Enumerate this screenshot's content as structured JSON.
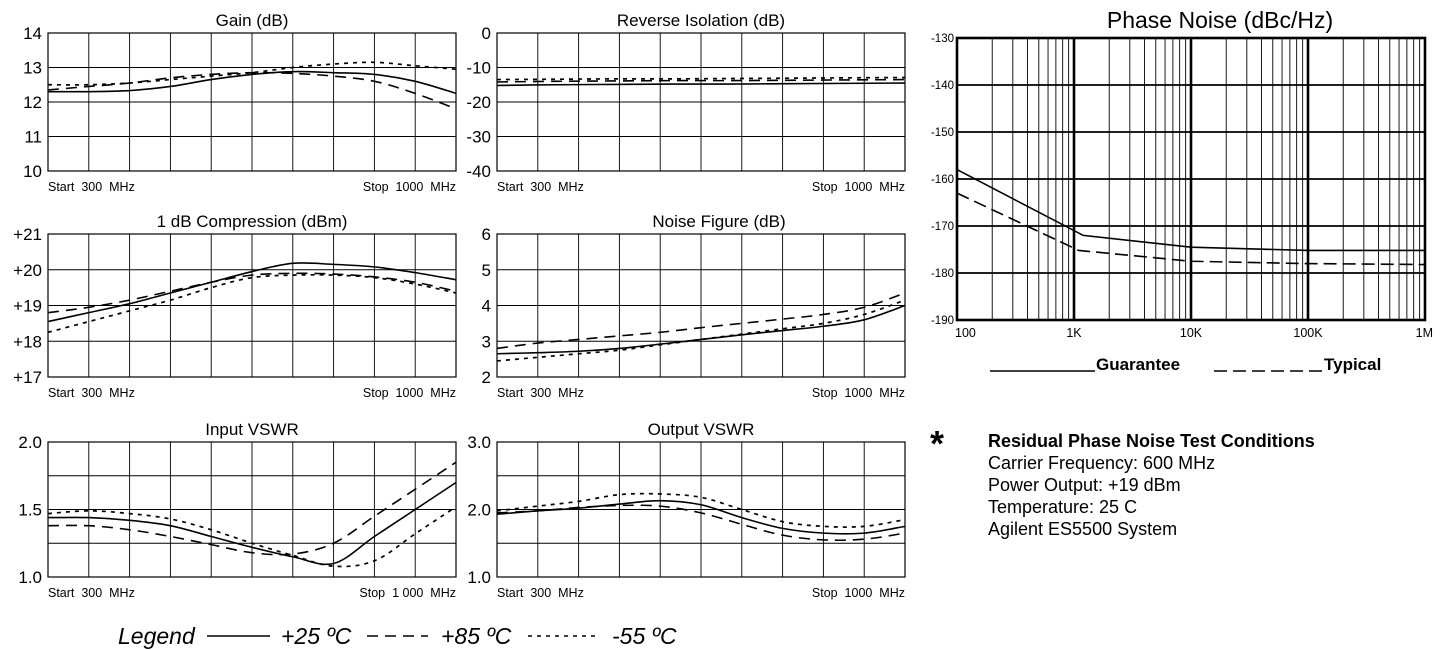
{
  "legend": {
    "title": "Legend",
    "entries": [
      {
        "label": "+25 ºC",
        "dash": "solid"
      },
      {
        "label": "+85 ºC",
        "dash": "long-dash"
      },
      {
        "label": "-55 ºC",
        "dash": "short-dash"
      }
    ]
  },
  "phase_noise_legend": {
    "guarantee": "Guarantee",
    "typical": "Typical"
  },
  "test_conditions": {
    "star": "*",
    "heading": "Residual Phase Noise Test Conditions",
    "lines": [
      "Carrier Frequency: 600 MHz",
      "Power Output: +19 dBm",
      "Temperature: 25 C",
      "Agilent ES5500 System"
    ]
  },
  "chart_data": [
    {
      "id": "gain",
      "type": "line",
      "title": "Gain (dB)",
      "x_start_label": "Start  300  MHz",
      "x_stop_label": "Stop  1000  MHz",
      "xlim": [
        300,
        1000
      ],
      "ylim": [
        10,
        14
      ],
      "yticks": [
        10,
        11,
        12,
        13,
        14
      ],
      "ytick_labels": [
        "10",
        "11",
        "12",
        "13",
        "14"
      ],
      "grid": {
        "vertical": 10,
        "horizontal": 4
      },
      "series": [
        {
          "name": "+25 ºC",
          "dash": "solid",
          "x": [
            300,
            370,
            440,
            510,
            580,
            650,
            720,
            790,
            860,
            930,
            1000
          ],
          "y": [
            12.3,
            12.3,
            12.33,
            12.45,
            12.65,
            12.8,
            12.88,
            12.85,
            12.8,
            12.6,
            12.25
          ]
        },
        {
          "name": "+85 ºC",
          "dash": "long-dash",
          "x": [
            300,
            370,
            440,
            510,
            580,
            650,
            720,
            790,
            860,
            930,
            1000
          ],
          "y": [
            12.35,
            12.45,
            12.55,
            12.7,
            12.8,
            12.85,
            12.83,
            12.75,
            12.6,
            12.25,
            11.8
          ]
        },
        {
          "name": "-55 ºC",
          "dash": "short-dash",
          "x": [
            300,
            370,
            440,
            510,
            580,
            650,
            720,
            790,
            860,
            930,
            1000
          ],
          "y": [
            12.5,
            12.5,
            12.55,
            12.65,
            12.75,
            12.85,
            13.0,
            13.1,
            13.15,
            13.05,
            12.95
          ]
        }
      ]
    },
    {
      "id": "reverse_isolation",
      "type": "line",
      "title": "Reverse Isolation (dB)",
      "x_start_label": "Start  300  MHz",
      "x_stop_label": "Stop  1000  MHz",
      "xlim": [
        300,
        1000
      ],
      "ylim": [
        -40,
        0
      ],
      "yticks": [
        -40,
        -30,
        -20,
        -10,
        0
      ],
      "ytick_labels": [
        "-40",
        "-30",
        "-20",
        "-10",
        "0"
      ],
      "grid": {
        "vertical": 10,
        "horizontal": 4
      },
      "series": [
        {
          "name": "+25 ºC",
          "dash": "solid",
          "x": [
            300,
            400,
            500,
            600,
            700,
            800,
            900,
            1000
          ],
          "y": [
            -15.2,
            -15.0,
            -14.9,
            -14.8,
            -14.8,
            -14.7,
            -14.6,
            -14.5
          ]
        },
        {
          "name": "+85 ºC",
          "dash": "long-dash",
          "x": [
            300,
            400,
            500,
            600,
            700,
            800,
            900,
            1000
          ],
          "y": [
            -14.2,
            -14.0,
            -13.9,
            -13.8,
            -13.8,
            -13.7,
            -13.6,
            -13.5
          ]
        },
        {
          "name": "-55 ºC",
          "dash": "short-dash",
          "x": [
            300,
            400,
            500,
            600,
            700,
            800,
            900,
            1000
          ],
          "y": [
            -13.5,
            -13.4,
            -13.3,
            -13.3,
            -13.2,
            -13.1,
            -13.0,
            -12.9
          ]
        }
      ]
    },
    {
      "id": "compression",
      "type": "line",
      "title": "1 dB Compression (dBm)",
      "x_start_label": "Start  300  MHz",
      "x_stop_label": "Stop  1000  MHz",
      "xlim": [
        300,
        1000
      ],
      "ylim": [
        17,
        21
      ],
      "yticks": [
        17,
        18,
        19,
        20,
        21
      ],
      "ytick_labels": [
        "+17",
        "+18",
        "+19",
        "+20",
        "+21"
      ],
      "grid": {
        "vertical": 10,
        "horizontal": 4
      },
      "series": [
        {
          "name": "+25 ºC",
          "dash": "solid",
          "x": [
            300,
            370,
            440,
            510,
            580,
            650,
            720,
            790,
            860,
            930,
            1000
          ],
          "y": [
            18.55,
            18.8,
            19.05,
            19.35,
            19.65,
            19.95,
            20.18,
            20.15,
            20.08,
            19.92,
            19.72
          ]
        },
        {
          "name": "+85 ºC",
          "dash": "long-dash",
          "x": [
            300,
            370,
            440,
            510,
            580,
            650,
            720,
            790,
            860,
            930,
            1000
          ],
          "y": [
            18.8,
            18.95,
            19.15,
            19.4,
            19.65,
            19.85,
            19.9,
            19.88,
            19.8,
            19.65,
            19.4
          ]
        },
        {
          "name": "-55 ºC",
          "dash": "short-dash",
          "x": [
            300,
            370,
            440,
            510,
            580,
            650,
            720,
            790,
            860,
            930,
            1000
          ],
          "y": [
            18.25,
            18.55,
            18.85,
            19.15,
            19.5,
            19.78,
            19.85,
            19.85,
            19.78,
            19.6,
            19.35
          ]
        }
      ]
    },
    {
      "id": "noise_figure",
      "type": "line",
      "title": "Noise Figure (dB)",
      "x_start_label": "Start  300  MHz",
      "x_stop_label": "Stop  1000  MHz",
      "xlim": [
        300,
        1000
      ],
      "ylim": [
        2,
        6
      ],
      "yticks": [
        2,
        3,
        4,
        5,
        6
      ],
      "ytick_labels": [
        "2",
        "3",
        "4",
        "5",
        "6"
      ],
      "grid": {
        "vertical": 10,
        "horizontal": 4
      },
      "series": [
        {
          "name": "+25 ºC",
          "dash": "solid",
          "x": [
            300,
            370,
            440,
            510,
            580,
            650,
            720,
            790,
            860,
            930,
            1000
          ],
          "y": [
            2.65,
            2.68,
            2.72,
            2.8,
            2.92,
            3.05,
            3.18,
            3.3,
            3.42,
            3.6,
            4.0
          ]
        },
        {
          "name": "+85 ºC",
          "dash": "long-dash",
          "x": [
            300,
            370,
            440,
            510,
            580,
            650,
            720,
            790,
            860,
            930,
            1000
          ],
          "y": [
            2.8,
            2.95,
            3.05,
            3.15,
            3.25,
            3.38,
            3.5,
            3.62,
            3.75,
            3.95,
            4.35
          ]
        },
        {
          "name": "-55 ºC",
          "dash": "short-dash",
          "x": [
            300,
            370,
            440,
            510,
            580,
            650,
            720,
            790,
            860,
            930,
            1000
          ],
          "y": [
            2.45,
            2.55,
            2.65,
            2.75,
            2.9,
            3.05,
            3.2,
            3.35,
            3.5,
            3.75,
            4.15
          ]
        }
      ]
    },
    {
      "id": "input_vswr",
      "type": "line",
      "title": "Input VSWR",
      "x_start_label": "Start  300  MHz",
      "x_stop_label": "Stop  1 000  MHz",
      "xlim": [
        300,
        1000
      ],
      "ylim": [
        1.0,
        2.0
      ],
      "yticks": [
        1.0,
        1.5,
        2.0
      ],
      "ytick_labels": [
        "1.0",
        "1.5",
        "2.0"
      ],
      "grid": {
        "vertical": 10,
        "horizontal": 4
      },
      "series": [
        {
          "name": "+25 ºC",
          "dash": "solid",
          "x": [
            300,
            370,
            440,
            510,
            580,
            650,
            720,
            790,
            860,
            930,
            1000
          ],
          "y": [
            1.44,
            1.44,
            1.42,
            1.38,
            1.3,
            1.22,
            1.15,
            1.1,
            1.3,
            1.5,
            1.7
          ]
        },
        {
          "name": "+85 ºC",
          "dash": "long-dash",
          "x": [
            300,
            370,
            440,
            510,
            580,
            650,
            720,
            790,
            860,
            930,
            1000
          ],
          "y": [
            1.38,
            1.38,
            1.35,
            1.3,
            1.24,
            1.18,
            1.17,
            1.25,
            1.45,
            1.65,
            1.85
          ]
        },
        {
          "name": "-55 ºC",
          "dash": "short-dash",
          "x": [
            300,
            370,
            440,
            510,
            580,
            650,
            720,
            790,
            860,
            930,
            1000
          ],
          "y": [
            1.47,
            1.49,
            1.47,
            1.43,
            1.35,
            1.25,
            1.16,
            1.08,
            1.12,
            1.32,
            1.52
          ]
        }
      ]
    },
    {
      "id": "output_vswr",
      "type": "line",
      "title": "Output VSWR",
      "x_start_label": "Start  300  MHz",
      "x_stop_label": "Stop  1000  MHz",
      "xlim": [
        300,
        1000
      ],
      "ylim": [
        1.0,
        3.0
      ],
      "yticks": [
        1.0,
        2.0,
        3.0
      ],
      "ytick_labels": [
        "1.0",
        "2.0",
        "3.0"
      ],
      "grid": {
        "vertical": 10,
        "horizontal": 4
      },
      "series": [
        {
          "name": "+25 ºC",
          "dash": "solid",
          "x": [
            300,
            370,
            440,
            510,
            580,
            650,
            720,
            790,
            860,
            930,
            1000
          ],
          "y": [
            1.93,
            1.98,
            2.02,
            2.08,
            2.13,
            2.07,
            1.88,
            1.72,
            1.65,
            1.65,
            1.75
          ]
        },
        {
          "name": "+85 ºC",
          "dash": "long-dash",
          "x": [
            300,
            370,
            440,
            510,
            580,
            650,
            720,
            790,
            860,
            930,
            1000
          ],
          "y": [
            1.95,
            1.98,
            2.03,
            2.06,
            2.05,
            1.95,
            1.78,
            1.62,
            1.55,
            1.56,
            1.65
          ]
        },
        {
          "name": "-55 ºC",
          "dash": "short-dash",
          "x": [
            300,
            370,
            440,
            510,
            580,
            650,
            720,
            790,
            860,
            930,
            1000
          ],
          "y": [
            1.98,
            2.05,
            2.12,
            2.22,
            2.23,
            2.18,
            2.0,
            1.82,
            1.75,
            1.75,
            1.85
          ]
        }
      ]
    },
    {
      "id": "phase_noise",
      "type": "line",
      "title": "Phase Noise (dBc/Hz)",
      "x_scale": "log",
      "xlim": [
        100,
        1000000
      ],
      "xticks": [
        100,
        1000,
        10000,
        100000,
        1000000
      ],
      "xtick_labels": [
        "100",
        "1K",
        "10K",
        "100K",
        "1M"
      ],
      "ylim": [
        -190,
        -130
      ],
      "yticks": [
        -190,
        -180,
        -170,
        -160,
        -150,
        -140,
        -130
      ],
      "ytick_labels": [
        "-190",
        "-180",
        "-170",
        "-160",
        "-150",
        "-140",
        "-130"
      ],
      "grid": {
        "log_minor": true,
        "horizontal": 6
      },
      "series": [
        {
          "name": "Guarantee",
          "dash": "solid",
          "x": [
            100,
            1200,
            10000,
            100000,
            1000000
          ],
          "y": [
            -158,
            -172,
            -174.5,
            -175.2,
            -175.2
          ]
        },
        {
          "name": "Typical",
          "dash": "long-dash",
          "x": [
            100,
            1100,
            10000,
            100000,
            1000000
          ],
          "y": [
            -163,
            -175.2,
            -177.5,
            -178,
            -178.2
          ]
        }
      ]
    }
  ]
}
